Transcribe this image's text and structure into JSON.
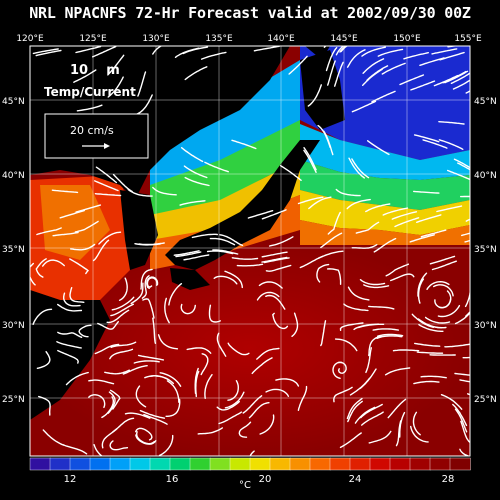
{
  "title": "NRL NPACNFS 72-Hr Forecast valid at 2002/09/30 00Z",
  "map": {
    "lon_labels": [
      "120°E",
      "125°E",
      "130°E",
      "135°E",
      "140°E",
      "145°E",
      "150°E",
      "155°E"
    ],
    "lat_labels": [
      "45°N",
      "40°N",
      "35°N",
      "30°N",
      "25°N"
    ],
    "depth_label": "10    m",
    "field_label": "Temp/Current",
    "scale_label": "20 cm/s"
  },
  "colorbar": {
    "unit": "°C",
    "tick_labels": [
      "12",
      "16",
      "20",
      "24",
      "28"
    ],
    "colors": [
      "#3010a0",
      "#2030c8",
      "#1050e0",
      "#0070f0",
      "#00a0f8",
      "#00c8e8",
      "#00d8b0",
      "#00d070",
      "#30d030",
      "#80e020",
      "#c8e800",
      "#f0e000",
      "#f8b800",
      "#f89000",
      "#f86800",
      "#f04000",
      "#e02000",
      "#d00800",
      "#b80000",
      "#a00000",
      "#900000",
      "#800000"
    ]
  }
}
